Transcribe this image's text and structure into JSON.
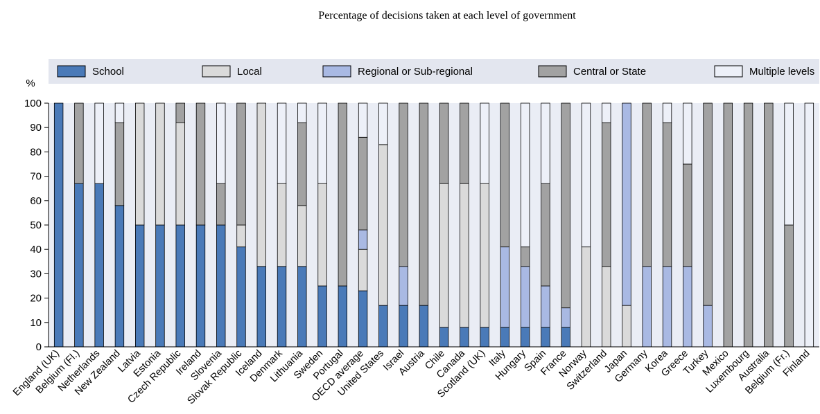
{
  "chart_data": {
    "type": "bar",
    "stacked": true,
    "title": "Percentage of decisions taken at each level of government",
    "ylabel": "%",
    "ylim": [
      0,
      100
    ],
    "yticks": [
      0,
      10,
      20,
      30,
      40,
      50,
      60,
      70,
      80,
      90,
      100
    ],
    "legend_position": "top",
    "categories": [
      "England (UK)",
      "Belgium (Fl.)",
      "Netherlands",
      "New Zealand",
      "Latvia",
      "Estonia",
      "Czech Republic",
      "Ireland",
      "Slovenia",
      "Slovak Republic",
      "Iceland",
      "Denmark",
      "Lithuania",
      "Sweden",
      "Portugal",
      "OECD average",
      "United States",
      "Israel",
      "Austria",
      "Chile",
      "Canada",
      "Scotland (UK)",
      "Italy",
      "Hungary",
      "Spain",
      "France",
      "Norway",
      "Switzerland",
      "Japan",
      "Germany",
      "Korea",
      "Greece",
      "Turkey",
      "Mexico",
      "Luxembourg",
      "Australia",
      "Belgium (Fr.)",
      "Finland"
    ],
    "series": [
      {
        "name": "School",
        "color": "#4a7ab8",
        "values": [
          100,
          67,
          67,
          58,
          50,
          50,
          50,
          50,
          50,
          41,
          33,
          33,
          33,
          25,
          25,
          23,
          17,
          17,
          17,
          8,
          8,
          8,
          8,
          8,
          8,
          8,
          0,
          0,
          0,
          0,
          0,
          0,
          0,
          0,
          0,
          0,
          0,
          0
        ]
      },
      {
        "name": "Local",
        "color": "#dadada",
        "values": [
          0,
          0,
          0,
          0,
          50,
          50,
          42,
          0,
          0,
          9,
          67,
          34,
          25,
          42,
          0,
          17,
          66,
          0,
          0,
          59,
          59,
          59,
          0,
          0,
          0,
          0,
          41,
          33,
          17,
          0,
          0,
          0,
          0,
          0,
          0,
          0,
          0,
          0
        ]
      },
      {
        "name": "Regional or Sub-regional",
        "color": "#a9b9e3",
        "values": [
          0,
          0,
          0,
          0,
          0,
          0,
          0,
          0,
          0,
          0,
          0,
          0,
          0,
          0,
          0,
          8,
          0,
          16,
          0,
          0,
          0,
          0,
          33,
          25,
          17,
          8,
          0,
          0,
          83,
          33,
          33,
          33,
          17,
          0,
          0,
          0,
          0,
          0
        ]
      },
      {
        "name": "Central or State",
        "color": "#a2a2a2",
        "values": [
          0,
          33,
          0,
          34,
          0,
          0,
          8,
          50,
          17,
          50,
          0,
          0,
          34,
          0,
          75,
          38,
          0,
          67,
          83,
          33,
          33,
          0,
          59,
          8,
          42,
          84,
          0,
          59,
          0,
          67,
          59,
          42,
          83,
          100,
          100,
          100,
          50,
          0
        ]
      },
      {
        "name": "Multiple levels",
        "color": "#edf0f8",
        "values": [
          0,
          0,
          33,
          8,
          0,
          0,
          0,
          0,
          33,
          0,
          0,
          33,
          8,
          33,
          0,
          14,
          17,
          0,
          0,
          0,
          0,
          33,
          0,
          59,
          33,
          0,
          59,
          8,
          0,
          0,
          8,
          25,
          0,
          0,
          0,
          0,
          50,
          100
        ]
      }
    ]
  }
}
